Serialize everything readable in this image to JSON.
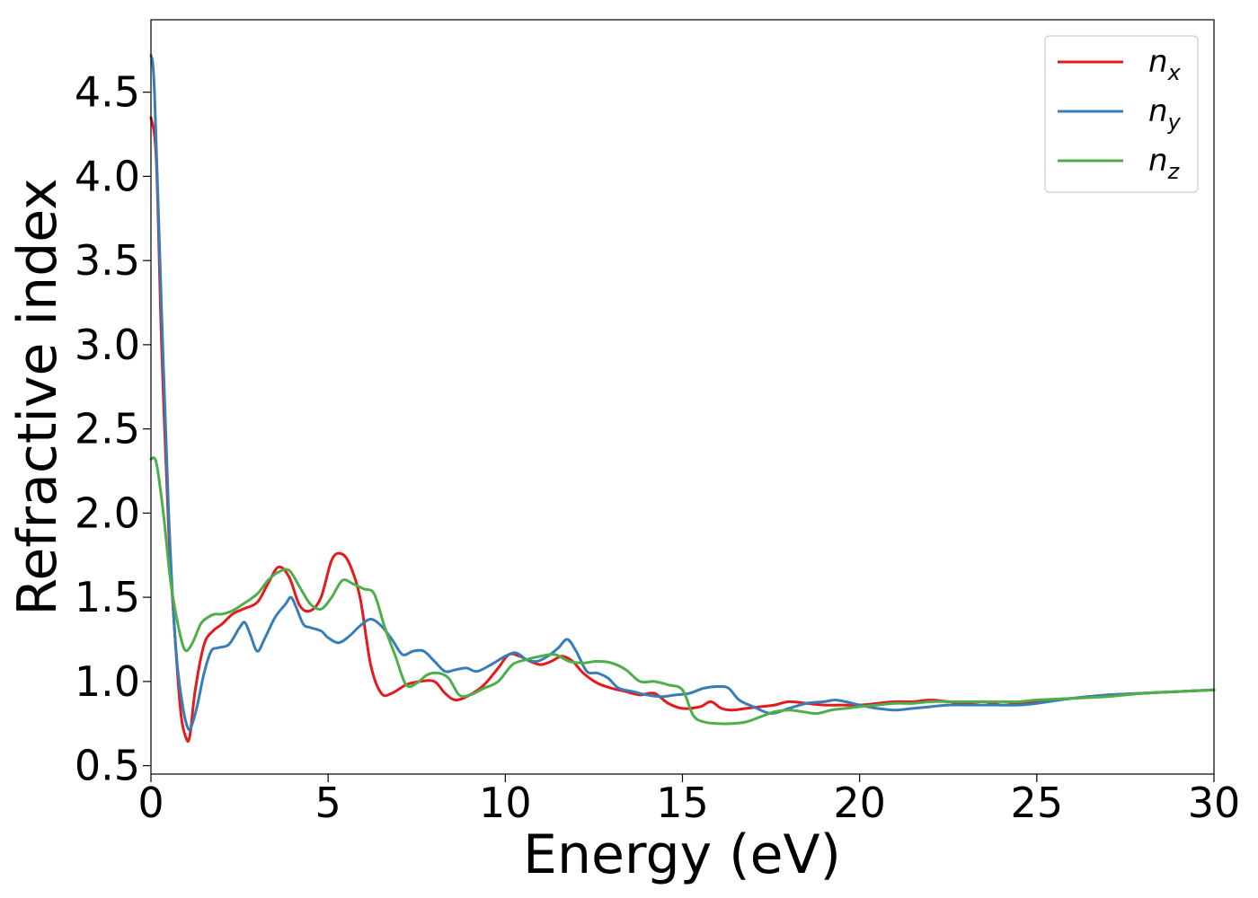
{
  "chart_data": {
    "type": "line",
    "xlabel": "Energy (eV)",
    "ylabel": "Refractive index",
    "xlim": [
      0,
      30
    ],
    "ylim": [
      0.45,
      4.93
    ],
    "xticks": [
      0,
      5,
      10,
      15,
      20,
      25,
      30
    ],
    "xtick_labels": [
      "0",
      "5",
      "10",
      "15",
      "20",
      "25",
      "30"
    ],
    "yticks": [
      0.5,
      1.0,
      1.5,
      2.0,
      2.5,
      3.0,
      3.5,
      4.0,
      4.5
    ],
    "ytick_labels": [
      "0.5",
      "1.0",
      "1.5",
      "2.0",
      "2.5",
      "3.0",
      "3.5",
      "4.0",
      "4.5"
    ],
    "grid": false,
    "legend_position": "top-right",
    "series": [
      {
        "name": "n",
        "subscript": "x",
        "color": "#e41a1c",
        "x": [
          0,
          0.15,
          0.3,
          0.5,
          0.7,
          0.85,
          1.0,
          1.1,
          1.25,
          1.5,
          1.75,
          2.0,
          2.3,
          2.6,
          3.0,
          3.3,
          3.6,
          3.9,
          4.2,
          4.5,
          4.8,
          5.1,
          5.35,
          5.6,
          5.9,
          6.2,
          6.5,
          6.8,
          7.2,
          7.6,
          8.0,
          8.3,
          8.6,
          9.0,
          9.4,
          9.8,
          10.1,
          10.4,
          10.7,
          11.0,
          11.3,
          11.6,
          11.9,
          12.2,
          12.6,
          13.0,
          13.4,
          13.8,
          14.2,
          14.6,
          15.0,
          15.5,
          15.8,
          16.1,
          16.4,
          16.8,
          17.2,
          17.6,
          18.0,
          18.5,
          19.0,
          19.5,
          20.0,
          20.5,
          21.0,
          21.5,
          22.0,
          22.5,
          23.0,
          23.5,
          24.0,
          24.5,
          25.0,
          26.0,
          27.0,
          28.0,
          29.0,
          30.0
        ],
        "y": [
          4.35,
          4.1,
          3.0,
          1.9,
          1.2,
          0.8,
          0.66,
          0.68,
          0.95,
          1.22,
          1.3,
          1.34,
          1.4,
          1.43,
          1.47,
          1.58,
          1.68,
          1.62,
          1.45,
          1.42,
          1.5,
          1.72,
          1.76,
          1.7,
          1.5,
          1.1,
          0.93,
          0.93,
          0.98,
          1.0,
          1.0,
          0.93,
          0.89,
          0.92,
          0.98,
          1.08,
          1.16,
          1.15,
          1.12,
          1.1,
          1.12,
          1.15,
          1.12,
          1.05,
          0.99,
          0.96,
          0.94,
          0.92,
          0.93,
          0.87,
          0.84,
          0.85,
          0.88,
          0.84,
          0.83,
          0.84,
          0.85,
          0.86,
          0.88,
          0.87,
          0.86,
          0.86,
          0.86,
          0.87,
          0.88,
          0.88,
          0.89,
          0.88,
          0.87,
          0.88,
          0.86,
          0.87,
          0.88,
          0.9,
          0.92,
          0.93,
          0.94,
          0.95
        ]
      },
      {
        "name": "n",
        "subscript": "y",
        "color": "#377eb8",
        "x": [
          0,
          0.1,
          0.3,
          0.5,
          0.7,
          0.9,
          1.05,
          1.15,
          1.3,
          1.5,
          1.7,
          1.9,
          2.2,
          2.5,
          2.65,
          2.8,
          3.0,
          3.2,
          3.5,
          3.8,
          3.95,
          4.1,
          4.3,
          4.5,
          4.8,
          5.0,
          5.3,
          5.6,
          5.9,
          6.2,
          6.5,
          6.8,
          7.1,
          7.4,
          7.7,
          8.0,
          8.3,
          8.6,
          8.9,
          9.2,
          9.6,
          10.0,
          10.3,
          10.6,
          10.9,
          11.2,
          11.5,
          11.75,
          12.0,
          12.3,
          12.6,
          12.9,
          13.2,
          13.6,
          14.0,
          14.4,
          14.8,
          15.2,
          15.6,
          16.0,
          16.3,
          16.6,
          17.0,
          17.5,
          18.0,
          18.5,
          19.0,
          19.3,
          19.6,
          20.0,
          20.5,
          21.0,
          21.5,
          22.0,
          22.5,
          23.0,
          23.5,
          24.0,
          24.5,
          25.0,
          26.0,
          27.0,
          28.0,
          29.0,
          30.0
        ],
        "y": [
          4.72,
          4.5,
          3.2,
          2.0,
          1.2,
          0.85,
          0.72,
          0.74,
          0.85,
          1.05,
          1.18,
          1.2,
          1.22,
          1.32,
          1.35,
          1.28,
          1.18,
          1.25,
          1.38,
          1.46,
          1.5,
          1.44,
          1.34,
          1.32,
          1.3,
          1.26,
          1.23,
          1.27,
          1.33,
          1.37,
          1.33,
          1.25,
          1.16,
          1.18,
          1.18,
          1.12,
          1.06,
          1.07,
          1.08,
          1.06,
          1.1,
          1.15,
          1.17,
          1.13,
          1.12,
          1.15,
          1.2,
          1.25,
          1.18,
          1.06,
          1.05,
          1.02,
          0.96,
          0.94,
          0.92,
          0.91,
          0.92,
          0.93,
          0.96,
          0.97,
          0.96,
          0.89,
          0.85,
          0.81,
          0.84,
          0.87,
          0.88,
          0.89,
          0.88,
          0.86,
          0.84,
          0.83,
          0.84,
          0.85,
          0.86,
          0.86,
          0.86,
          0.86,
          0.86,
          0.87,
          0.9,
          0.92,
          0.93,
          0.94,
          0.95
        ]
      },
      {
        "name": "n",
        "subscript": "z",
        "color": "#4daf4a",
        "x": [
          0,
          0.15,
          0.35,
          0.55,
          0.75,
          0.95,
          1.15,
          1.4,
          1.6,
          1.8,
          2.0,
          2.3,
          2.6,
          3.0,
          3.3,
          3.6,
          3.9,
          4.2,
          4.5,
          4.8,
          5.1,
          5.4,
          5.7,
          6.0,
          6.3,
          6.6,
          6.9,
          7.2,
          7.5,
          7.8,
          8.1,
          8.4,
          8.7,
          9.0,
          9.4,
          9.8,
          10.2,
          10.6,
          11.0,
          11.4,
          11.8,
          12.2,
          12.6,
          13.0,
          13.4,
          13.8,
          14.2,
          14.6,
          15.0,
          15.3,
          15.6,
          16.0,
          16.4,
          16.8,
          17.2,
          17.6,
          18.0,
          18.4,
          18.8,
          19.2,
          19.6,
          20.0,
          20.5,
          21.0,
          21.5,
          22.0,
          22.5,
          23.0,
          23.5,
          24.0,
          24.5,
          25.0,
          26.0,
          27.0,
          28.0,
          29.0,
          30.0
        ],
        "y": [
          2.32,
          2.3,
          2.0,
          1.6,
          1.35,
          1.19,
          1.22,
          1.34,
          1.38,
          1.4,
          1.4,
          1.42,
          1.46,
          1.52,
          1.6,
          1.65,
          1.66,
          1.56,
          1.46,
          1.43,
          1.5,
          1.6,
          1.58,
          1.55,
          1.52,
          1.32,
          1.15,
          0.98,
          0.99,
          1.04,
          1.05,
          1.02,
          0.92,
          0.92,
          0.96,
          1.0,
          1.1,
          1.13,
          1.15,
          1.16,
          1.12,
          1.11,
          1.12,
          1.11,
          1.07,
          1.0,
          1.0,
          0.98,
          0.95,
          0.8,
          0.76,
          0.75,
          0.75,
          0.76,
          0.79,
          0.82,
          0.83,
          0.82,
          0.81,
          0.83,
          0.84,
          0.85,
          0.86,
          0.87,
          0.87,
          0.88,
          0.88,
          0.88,
          0.88,
          0.88,
          0.88,
          0.89,
          0.9,
          0.91,
          0.93,
          0.94,
          0.95
        ]
      }
    ]
  }
}
